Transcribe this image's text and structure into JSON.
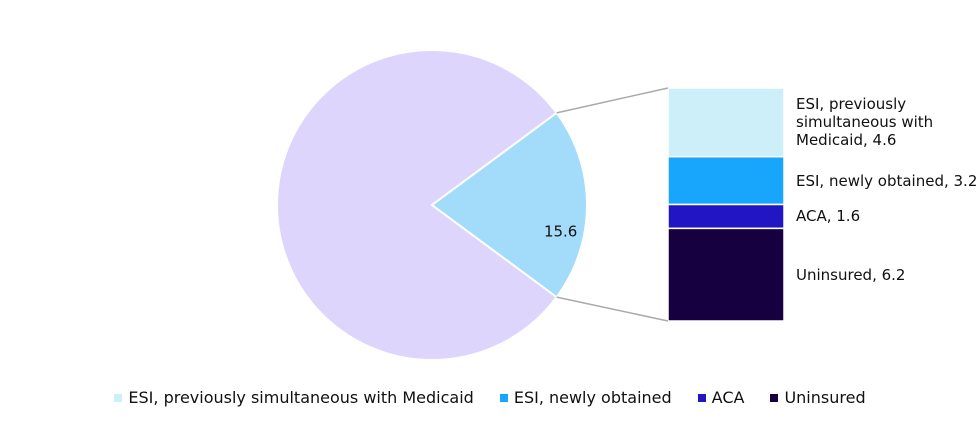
{
  "chart_data": {
    "type": "pie",
    "pie": {
      "values": [
        61.4,
        15.6
      ],
      "value_labels": [
        null,
        "15.6"
      ],
      "colors": [
        "#ddd5fc",
        "#a3dcfa"
      ]
    },
    "breakdown": {
      "categories": [
        "ESI, previously simultaneous with Medicaid",
        "ESI, newly obtained",
        "ACA",
        "Uninsured"
      ],
      "values": [
        4.6,
        3.2,
        1.6,
        6.2
      ],
      "value_labels": [
        "ESI, previously simultaneous with Medicaid, 4.6",
        "ESI, newly obtained, 3.2",
        "ACA, 1.6",
        "Uninsured, 6.2"
      ],
      "colors": [
        "#cdeffa",
        "#17a6fb",
        "#2216c4",
        "#170040"
      ]
    },
    "legend": "bottom"
  }
}
